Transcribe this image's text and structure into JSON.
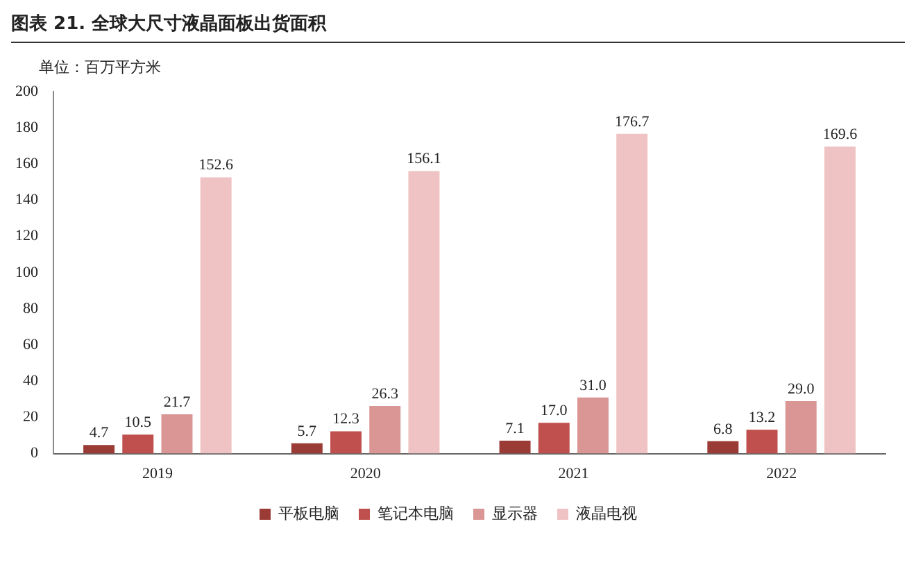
{
  "chart_data": {
    "type": "bar",
    "title": "图表 21. 全球大尺寸液晶面板出货面积",
    "subtitle": "单位：百万平方米",
    "categories": [
      "2019",
      "2020",
      "2021",
      "2022"
    ],
    "series": [
      {
        "name": "平板电脑",
        "color": "#9b3b36",
        "values": [
          4.7,
          5.7,
          7.1,
          6.8
        ]
      },
      {
        "name": "笔记本电脑",
        "color": "#c0504d",
        "values": [
          10.5,
          12.3,
          17.0,
          13.2
        ]
      },
      {
        "name": "显示器",
        "color": "#d99694",
        "values": [
          21.7,
          26.3,
          31.0,
          29.0
        ]
      },
      {
        "name": "液晶电视",
        "color": "#efc3c3",
        "values": [
          152.6,
          156.1,
          176.7,
          169.6
        ]
      }
    ],
    "value_labels": [
      [
        "4.7",
        "5.7",
        "7.1",
        "6.8"
      ],
      [
        "10.5",
        "12.3",
        "17.0",
        "13.2"
      ],
      [
        "21.7",
        "26.3",
        "31.0",
        "29.0"
      ],
      [
        "152.6",
        "156.1",
        "176.7",
        "169.6"
      ]
    ],
    "ylim": [
      0,
      200
    ],
    "yticks": [
      0,
      20,
      40,
      60,
      80,
      100,
      120,
      140,
      160,
      180,
      200
    ],
    "grid": false,
    "legend": "bottom"
  }
}
